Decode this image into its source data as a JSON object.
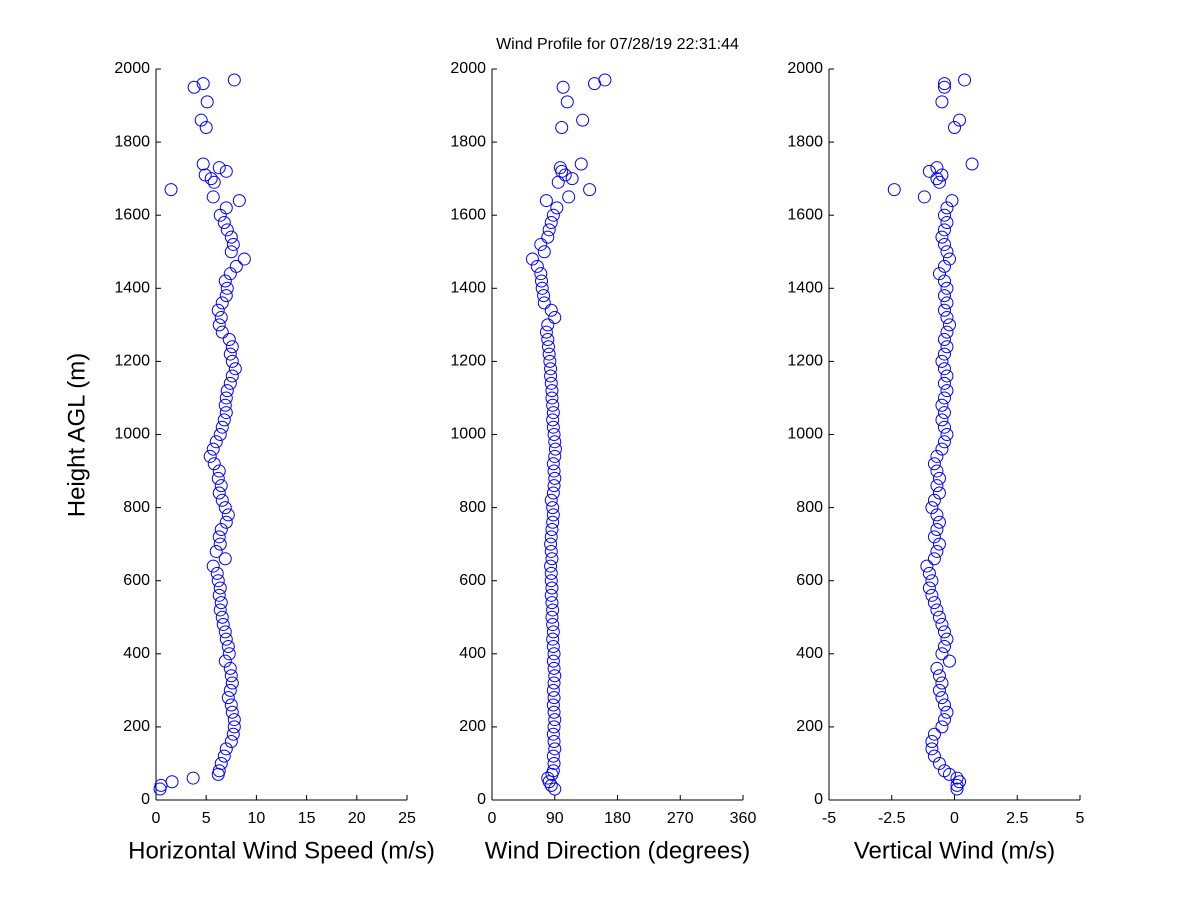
{
  "chart_data": [
    {
      "type": "scatter",
      "xlabel": "Horizontal Wind Speed (m/s)",
      "ylabel": "Height AGL (m)",
      "color": "#0000ff",
      "xlim": [
        0,
        25
      ],
      "xticks": [
        0,
        5,
        10,
        15,
        20,
        25
      ],
      "ylim": [
        0,
        2000
      ],
      "yticks": [
        0,
        200,
        400,
        600,
        800,
        1000,
        1200,
        1400,
        1600,
        1800,
        2000
      ],
      "x": [
        0.4,
        0.5,
        1.6,
        3.7,
        6.2,
        6.3,
        6.5,
        6.8,
        7.0,
        7.5,
        7.7,
        7.8,
        7.8,
        7.6,
        7.5,
        7.2,
        7.4,
        7.6,
        7.5,
        7.4,
        6.9,
        7.3,
        7.2,
        7.0,
        6.9,
        6.7,
        6.6,
        6.4,
        6.5,
        6.3,
        6.4,
        6.2,
        6.1,
        5.7,
        6.9,
        6.0,
        6.4,
        6.3,
        6.5,
        7.0,
        7.2,
        6.9,
        6.6,
        6.3,
        6.5,
        6.2,
        6.3,
        5.8,
        5.4,
        5.7,
        6.0,
        6.4,
        6.6,
        6.8,
        7.0,
        6.9,
        7.0,
        7.1,
        7.4,
        7.6,
        7.9,
        7.6,
        7.4,
        7.6,
        7.3,
        6.6,
        6.3,
        6.5,
        6.2,
        6.6,
        7.0,
        7.1,
        6.9,
        7.4,
        8.0,
        8.8,
        7.5,
        7.7,
        7.5,
        7.1,
        6.8,
        6.4,
        7.0,
        8.3,
        5.7,
        1.5,
        5.8,
        5.5,
        4.9,
        7.0,
        6.3,
        4.7,
        5.0,
        4.5,
        5.1,
        3.8,
        4.7,
        7.8
      ],
      "values": [
        30,
        40,
        50,
        60,
        70,
        80,
        100,
        120,
        140,
        160,
        180,
        200,
        220,
        240,
        260,
        280,
        300,
        320,
        340,
        360,
        380,
        400,
        420,
        440,
        460,
        480,
        500,
        520,
        540,
        560,
        580,
        600,
        620,
        640,
        660,
        680,
        700,
        720,
        740,
        760,
        780,
        800,
        820,
        840,
        860,
        880,
        900,
        920,
        940,
        960,
        980,
        1000,
        1020,
        1040,
        1060,
        1080,
        1100,
        1120,
        1140,
        1160,
        1180,
        1200,
        1220,
        1240,
        1260,
        1280,
        1300,
        1320,
        1340,
        1360,
        1380,
        1400,
        1420,
        1440,
        1460,
        1480,
        1500,
        1520,
        1540,
        1560,
        1580,
        1600,
        1620,
        1640,
        1650,
        1670,
        1690,
        1700,
        1710,
        1720,
        1730,
        1740,
        1840,
        1860,
        1910,
        1950,
        1960,
        1970
      ]
    },
    {
      "type": "scatter",
      "title": "Wind Profile for  07/28/19 22:31:44",
      "xlabel": "Wind Direction (degrees)",
      "color": "#0000ff",
      "xlim": [
        0,
        360
      ],
      "xticks": [
        0,
        90,
        180,
        270,
        360
      ],
      "ylim": [
        0,
        2000
      ],
      "yticks": [
        0,
        200,
        400,
        600,
        800,
        1000,
        1200,
        1400,
        1600,
        1800,
        2000
      ],
      "x": [
        90,
        85,
        82,
        80,
        86,
        88,
        89,
        88,
        90,
        89,
        88,
        89,
        90,
        89,
        88,
        89,
        88,
        89,
        90,
        89,
        88,
        89,
        88,
        87,
        88,
        87,
        86,
        87,
        86,
        85,
        86,
        85,
        85,
        84,
        86,
        85,
        84,
        85,
        86,
        87,
        88,
        87,
        85,
        88,
        89,
        90,
        89,
        88,
        90,
        91,
        90,
        89,
        88,
        87,
        88,
        87,
        86,
        86,
        85,
        84,
        84,
        83,
        82,
        81,
        80,
        78,
        80,
        90,
        85,
        75,
        74,
        72,
        71,
        70,
        65,
        58,
        75,
        70,
        80,
        82,
        85,
        88,
        93,
        78,
        110,
        140,
        95,
        115,
        105,
        100,
        98,
        128,
        100,
        130,
        108,
        102,
        147,
        162
      ],
      "values": [
        30,
        40,
        50,
        60,
        70,
        80,
        100,
        120,
        140,
        160,
        180,
        200,
        220,
        240,
        260,
        280,
        300,
        320,
        340,
        360,
        380,
        400,
        420,
        440,
        460,
        480,
        500,
        520,
        540,
        560,
        580,
        600,
        620,
        640,
        660,
        680,
        700,
        720,
        740,
        760,
        780,
        800,
        820,
        840,
        860,
        880,
        900,
        920,
        940,
        960,
        980,
        1000,
        1020,
        1040,
        1060,
        1080,
        1100,
        1120,
        1140,
        1160,
        1180,
        1200,
        1220,
        1240,
        1260,
        1280,
        1300,
        1320,
        1340,
        1360,
        1380,
        1400,
        1420,
        1440,
        1460,
        1480,
        1500,
        1520,
        1540,
        1560,
        1580,
        1600,
        1620,
        1640,
        1650,
        1670,
        1690,
        1700,
        1710,
        1720,
        1730,
        1740,
        1840,
        1860,
        1910,
        1950,
        1960,
        1970
      ]
    },
    {
      "type": "scatter",
      "xlabel": "Vertical Wind (m/s)",
      "color": "#0000ff",
      "xlim": [
        -5,
        5
      ],
      "xticks": [
        -5,
        -2.5,
        0,
        2.5,
        5
      ],
      "ylim": [
        0,
        2000
      ],
      "yticks": [
        0,
        200,
        400,
        600,
        800,
        1000,
        1200,
        1400,
        1600,
        1800,
        2000
      ],
      "x": [
        0.1,
        0.1,
        0.2,
        0.1,
        -0.2,
        -0.4,
        -0.6,
        -0.8,
        -0.9,
        -0.9,
        -0.8,
        -0.5,
        -0.4,
        -0.3,
        -0.4,
        -0.5,
        -0.6,
        -0.5,
        -0.6,
        -0.7,
        -0.2,
        -0.5,
        -0.4,
        -0.3,
        -0.4,
        -0.5,
        -0.6,
        -0.7,
        -0.8,
        -0.9,
        -1.0,
        -0.9,
        -1.0,
        -1.1,
        -0.8,
        -0.7,
        -0.6,
        -0.8,
        -0.7,
        -0.6,
        -0.7,
        -0.9,
        -0.8,
        -0.6,
        -0.7,
        -0.6,
        -0.7,
        -0.8,
        -0.7,
        -0.5,
        -0.4,
        -0.3,
        -0.4,
        -0.5,
        -0.4,
        -0.5,
        -0.4,
        -0.3,
        -0.4,
        -0.3,
        -0.4,
        -0.5,
        -0.4,
        -0.3,
        -0.4,
        -0.3,
        -0.2,
        -0.3,
        -0.4,
        -0.3,
        -0.4,
        -0.3,
        -0.4,
        -0.6,
        -0.4,
        -0.2,
        -0.3,
        -0.4,
        -0.5,
        -0.4,
        -0.3,
        -0.4,
        -0.3,
        -0.1,
        -1.2,
        -2.4,
        -0.6,
        -0.7,
        -0.5,
        -1.0,
        -0.7,
        0.7,
        0.0,
        0.2,
        -0.5,
        -0.4,
        -0.4,
        0.4
      ],
      "values": [
        30,
        40,
        50,
        60,
        70,
        80,
        100,
        120,
        140,
        160,
        180,
        200,
        220,
        240,
        260,
        280,
        300,
        320,
        340,
        360,
        380,
        400,
        420,
        440,
        460,
        480,
        500,
        520,
        540,
        560,
        580,
        600,
        620,
        640,
        660,
        680,
        700,
        720,
        740,
        760,
        780,
        800,
        820,
        840,
        860,
        880,
        900,
        920,
        940,
        960,
        980,
        1000,
        1020,
        1040,
        1060,
        1080,
        1100,
        1120,
        1140,
        1160,
        1180,
        1200,
        1220,
        1240,
        1260,
        1280,
        1300,
        1320,
        1340,
        1360,
        1380,
        1400,
        1420,
        1440,
        1460,
        1480,
        1500,
        1520,
        1540,
        1560,
        1580,
        1600,
        1620,
        1640,
        1650,
        1670,
        1690,
        1700,
        1710,
        1720,
        1730,
        1740,
        1840,
        1860,
        1910,
        1950,
        1960,
        1970
      ]
    }
  ]
}
